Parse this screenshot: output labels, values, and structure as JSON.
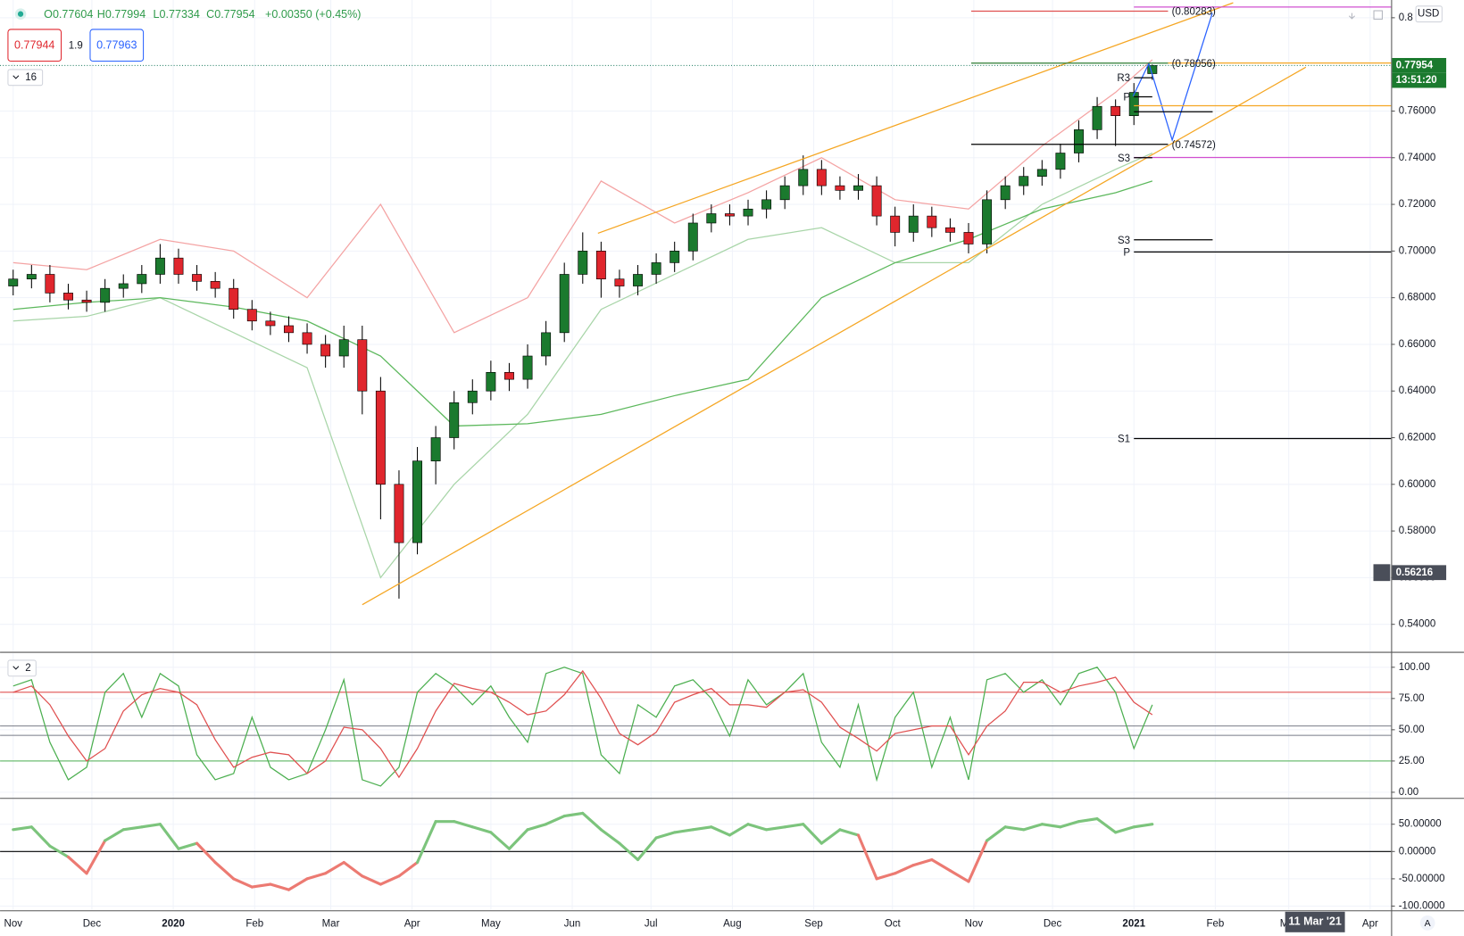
{
  "header": {
    "ohlc": [
      "O0.77604",
      "H0.77994",
      "L0.77334",
      "C0.77954",
      "+0.00350 (+0.45%)"
    ],
    "sell": "0.77944",
    "spread": "1.9",
    "buy": "0.77963",
    "price_pane_label": "16",
    "stoch_pane_label": "2",
    "currency": "USD",
    "countdown": "13:51:20",
    "crosshair_date": "11 Mar '21",
    "auto_button": "A"
  },
  "chart_data": [
    {
      "type": "candlestick",
      "xlim": [
        -5,
        525
      ],
      "xticks": [
        {
          "value": 0,
          "label": "Nov"
        },
        {
          "value": 30,
          "label": "Dec"
        },
        {
          "value": 61,
          "label": "2020"
        },
        {
          "value": 92,
          "label": "Feb"
        },
        {
          "value": 121,
          "label": "Mar"
        },
        {
          "value": 152,
          "label": "Apr"
        },
        {
          "value": 182,
          "label": "May"
        },
        {
          "value": 213,
          "label": "Jun"
        },
        {
          "value": 243,
          "label": "Jul"
        },
        {
          "value": 274,
          "label": "Aug"
        },
        {
          "value": 305,
          "label": "Sep"
        },
        {
          "value": 335,
          "label": "Oct"
        },
        {
          "value": 366,
          "label": "Nov"
        },
        {
          "value": 396,
          "label": "Dec"
        },
        {
          "value": 427,
          "label": "2021"
        },
        {
          "value": 458,
          "label": "Feb"
        },
        {
          "value": 486,
          "label": "Mar"
        },
        {
          "value": 517,
          "label": "Apr"
        }
      ],
      "ylim": [
        0.5284,
        0.8076
      ],
      "yticks": [
        {
          "value": 0.54,
          "label": "0.54000"
        },
        {
          "value": 0.56,
          "label": "0.56000"
        },
        {
          "value": 0.58,
          "label": "0.58000"
        },
        {
          "value": 0.6,
          "label": "0.60000"
        },
        {
          "value": 0.62,
          "label": "0.62000"
        },
        {
          "value": 0.64,
          "label": "0.64000"
        },
        {
          "value": 0.66,
          "label": "0.66000"
        },
        {
          "value": 0.68,
          "label": "0.68000"
        },
        {
          "value": 0.7,
          "label": "0.70000"
        },
        {
          "value": 0.72,
          "label": "0.72000"
        },
        {
          "value": 0.74,
          "label": "0.74000"
        },
        {
          "value": 0.76,
          "label": "0.76000"
        },
        {
          "value": 0.8,
          "label": "0.8"
        }
      ],
      "grid": true,
      "up_color": "#1b7a2e",
      "down_color": "#e0262d",
      "x": [
        0,
        7,
        14,
        21,
        28,
        35,
        42,
        49,
        56,
        63,
        70,
        77,
        84,
        91,
        98,
        105,
        112,
        119,
        126,
        133,
        140,
        147,
        154,
        161,
        168,
        175,
        182,
        189,
        196,
        203,
        210,
        217,
        224,
        231,
        238,
        245,
        252,
        259,
        266,
        273,
        280,
        287,
        294,
        301,
        308,
        315,
        322,
        329,
        336,
        343,
        350,
        357,
        364,
        371,
        378,
        385,
        392,
        399,
        406,
        413,
        420,
        427,
        434
      ],
      "open": [
        0.685,
        0.688,
        0.69,
        0.682,
        0.679,
        0.678,
        0.684,
        0.686,
        0.69,
        0.697,
        0.69,
        0.687,
        0.684,
        0.675,
        0.67,
        0.668,
        0.665,
        0.66,
        0.655,
        0.662,
        0.64,
        0.6,
        0.575,
        0.61,
        0.62,
        0.635,
        0.64,
        0.648,
        0.645,
        0.655,
        0.665,
        0.69,
        0.7,
        0.688,
        0.685,
        0.69,
        0.695,
        0.7,
        0.712,
        0.716,
        0.715,
        0.718,
        0.722,
        0.728,
        0.735,
        0.728,
        0.726,
        0.728,
        0.715,
        0.708,
        0.715,
        0.71,
        0.708,
        0.703,
        0.722,
        0.728,
        0.732,
        0.735,
        0.742,
        0.752,
        0.762,
        0.758,
        0.77604
      ],
      "high": [
        0.692,
        0.694,
        0.694,
        0.686,
        0.683,
        0.688,
        0.69,
        0.694,
        0.703,
        0.701,
        0.694,
        0.691,
        0.688,
        0.679,
        0.674,
        0.672,
        0.669,
        0.664,
        0.668,
        0.668,
        0.646,
        0.606,
        0.616,
        0.625,
        0.64,
        0.645,
        0.653,
        0.652,
        0.66,
        0.67,
        0.695,
        0.708,
        0.704,
        0.692,
        0.694,
        0.699,
        0.704,
        0.716,
        0.72,
        0.72,
        0.722,
        0.726,
        0.732,
        0.741,
        0.739,
        0.732,
        0.733,
        0.732,
        0.719,
        0.72,
        0.719,
        0.714,
        0.712,
        0.726,
        0.732,
        0.736,
        0.739,
        0.746,
        0.756,
        0.766,
        0.765,
        0.772,
        0.77994
      ],
      "low": [
        0.681,
        0.684,
        0.678,
        0.675,
        0.674,
        0.674,
        0.68,
        0.682,
        0.686,
        0.686,
        0.683,
        0.68,
        0.671,
        0.666,
        0.664,
        0.661,
        0.656,
        0.65,
        0.65,
        0.63,
        0.585,
        0.551,
        0.57,
        0.6,
        0.615,
        0.63,
        0.636,
        0.64,
        0.641,
        0.651,
        0.661,
        0.686,
        0.68,
        0.68,
        0.681,
        0.686,
        0.691,
        0.696,
        0.708,
        0.711,
        0.711,
        0.714,
        0.718,
        0.724,
        0.724,
        0.722,
        0.722,
        0.711,
        0.702,
        0.704,
        0.706,
        0.704,
        0.699,
        0.699,
        0.718,
        0.724,
        0.728,
        0.731,
        0.738,
        0.748,
        0.745,
        0.754,
        0.77334
      ],
      "close": [
        0.688,
        0.69,
        0.682,
        0.679,
        0.678,
        0.684,
        0.686,
        0.69,
        0.697,
        0.69,
        0.687,
        0.684,
        0.675,
        0.67,
        0.668,
        0.665,
        0.66,
        0.655,
        0.662,
        0.64,
        0.6,
        0.575,
        0.61,
        0.62,
        0.635,
        0.64,
        0.648,
        0.645,
        0.655,
        0.665,
        0.69,
        0.7,
        0.688,
        0.685,
        0.69,
        0.695,
        0.7,
        0.712,
        0.716,
        0.715,
        0.718,
        0.722,
        0.728,
        0.735,
        0.728,
        0.726,
        0.728,
        0.715,
        0.708,
        0.715,
        0.71,
        0.708,
        0.703,
        0.722,
        0.728,
        0.732,
        0.735,
        0.742,
        0.752,
        0.762,
        0.758,
        0.768,
        0.77954
      ],
      "overlays": [
        {
          "color": "#f4a3a3",
          "x": [
            0,
            28,
            56,
            84,
            112,
            140,
            168,
            196,
            224,
            252,
            280,
            308,
            336,
            364,
            392,
            420,
            434
          ],
          "values": [
            0.695,
            0.692,
            0.705,
            0.7,
            0.68,
            0.72,
            0.665,
            0.68,
            0.73,
            0.712,
            0.725,
            0.74,
            0.722,
            0.718,
            0.745,
            0.768,
            0.782
          ]
        },
        {
          "color": "#a8d5a8",
          "x": [
            0,
            28,
            56,
            84,
            112,
            140,
            168,
            196,
            224,
            252,
            280,
            308,
            336,
            364,
            392,
            420,
            434
          ],
          "values": [
            0.67,
            0.672,
            0.68,
            0.665,
            0.65,
            0.56,
            0.6,
            0.63,
            0.675,
            0.69,
            0.705,
            0.71,
            0.695,
            0.695,
            0.72,
            0.735,
            0.742
          ]
        },
        {
          "color": "#5cb85c",
          "x": [
            0,
            28,
            56,
            84,
            112,
            140,
            168,
            196,
            224,
            252,
            280,
            308,
            336,
            364,
            392,
            420,
            434
          ],
          "values": [
            0.675,
            0.678,
            0.68,
            0.676,
            0.67,
            0.655,
            0.625,
            0.626,
            0.63,
            0.638,
            0.645,
            0.68,
            0.695,
            0.705,
            0.718,
            0.725,
            0.73
          ]
        }
      ],
      "trendlines": [
        {
          "color": "#f5a623",
          "x": [
            133,
            492.5
          ],
          "values": [
            0.5484,
            0.7788
          ]
        },
        {
          "color": "#f5a623",
          "x": [
            222.8,
            464.8
          ],
          "values": [
            0.7076,
            0.8064
          ]
        },
        {
          "color": "#2962ff",
          "x": [
            426.7,
            432.7,
            441.6,
            456.9
          ],
          "values": [
            0.7664,
            0.7804,
            0.7476,
            0.802
          ]
        }
      ],
      "levels": [
        {
          "value": 0.80283,
          "x": [
            365,
            440
          ],
          "color": "#e05050",
          "label": "(0.80283)",
          "label_side": "right"
        },
        {
          "value": 0.78056,
          "x": [
            365,
            440
          ],
          "color": "#2e7d32",
          "label": "(0.78056)",
          "label_side": "right"
        },
        {
          "value": 0.74572,
          "x": [
            365,
            440
          ],
          "color": "#000000",
          "label": "(0.74572)",
          "label_side": "right"
        },
        {
          "value": 0.8046,
          "x": [
            427,
            525
          ],
          "color": "#d050d0"
        },
        {
          "value": 0.7806,
          "x": [
            440,
            525
          ],
          "color": "#f5a623"
        },
        {
          "value": 0.7623,
          "x": [
            427,
            525
          ],
          "color": "#f5a623"
        },
        {
          "value": 0.7401,
          "x": [
            427,
            525
          ],
          "color": "#d050d0"
        },
        {
          "value": 0.7743,
          "x": [
            427,
            434
          ],
          "color": "#000000",
          "label": "R3",
          "label_side": "left"
        },
        {
          "value": 0.7661,
          "x": [
            427,
            434
          ],
          "color": "#000000",
          "label": "P",
          "label_side": "left"
        },
        {
          "value": 0.7597,
          "x": [
            427,
            457
          ],
          "color": "#000000"
        },
        {
          "value": 0.74,
          "x": [
            427,
            434
          ],
          "color": "#000000",
          "label": "S3",
          "label_side": "left"
        },
        {
          "value": 0.7048,
          "x": [
            427,
            457
          ],
          "color": "#000000",
          "label": "S3",
          "label_side": "left"
        },
        {
          "value": 0.6996,
          "x": [
            427,
            525
          ],
          "color": "#000000",
          "label": "P",
          "label_side": "left"
        },
        {
          "value": 0.6196,
          "x": [
            427,
            525
          ],
          "color": "#000000",
          "label": "S1",
          "label_side": "left"
        }
      ],
      "last_price": {
        "value": 0.77954,
        "label": "0.77954"
      },
      "crosshair": {
        "x": 496,
        "value": 0.56216,
        "label": "0.56216"
      }
    },
    {
      "type": "line",
      "ylim": [
        -4.5,
        111.2
      ],
      "yticks": [
        {
          "value": 0,
          "label": "0.00"
        },
        {
          "value": 25,
          "label": "25.00"
        },
        {
          "value": 50,
          "label": "50.00"
        },
        {
          "value": 75,
          "label": "75.00"
        },
        {
          "value": 100,
          "label": "100.00"
        }
      ],
      "levels": [
        {
          "value": 80,
          "color": "#e05050"
        },
        {
          "value": 53,
          "color": "#787b86"
        },
        {
          "value": 45.5,
          "color": "#787b86"
        },
        {
          "value": 25,
          "color": "#4caf50"
        }
      ],
      "x": [
        0,
        7,
        14,
        21,
        28,
        35,
        42,
        49,
        56,
        63,
        70,
        77,
        84,
        91,
        98,
        105,
        112,
        119,
        126,
        133,
        140,
        147,
        154,
        161,
        168,
        175,
        182,
        189,
        196,
        203,
        210,
        217,
        224,
        231,
        238,
        245,
        252,
        259,
        266,
        273,
        280,
        287,
        294,
        301,
        308,
        315,
        322,
        329,
        336,
        343,
        350,
        357,
        364,
        371,
        378,
        385,
        392,
        399,
        406,
        413,
        420,
        427,
        434
      ],
      "series": [
        {
          "color": "#4caf50",
          "values": [
            85,
            90,
            40,
            10,
            20,
            80,
            95,
            60,
            95,
            85,
            30,
            10,
            15,
            60,
            20,
            10,
            15,
            50,
            90,
            10,
            5,
            20,
            80,
            95,
            85,
            70,
            85,
            60,
            40,
            95,
            100,
            95,
            30,
            15,
            70,
            60,
            85,
            90,
            75,
            45,
            90,
            70,
            80,
            95,
            40,
            20,
            70,
            10,
            60,
            80,
            20,
            60,
            10,
            90,
            95,
            80,
            90,
            70,
            95,
            100,
            80,
            35,
            70
          ]
        },
        {
          "color": "#e05050",
          "values": [
            80,
            85,
            70,
            45,
            25,
            35,
            65,
            78,
            83,
            80,
            70,
            42,
            20,
            28,
            32,
            30,
            15,
            25,
            52,
            50,
            35,
            12,
            35,
            65,
            87,
            83,
            80,
            72,
            62,
            65,
            78,
            97,
            75,
            47,
            38,
            48,
            72,
            78,
            83,
            70,
            70,
            68,
            80,
            82,
            72,
            52,
            43,
            33,
            47,
            50,
            53,
            53,
            30,
            53,
            65,
            88,
            88,
            80,
            85,
            88,
            92,
            72,
            62
          ]
        }
      ]
    },
    {
      "type": "line",
      "ylim": [
        -106.9,
        96.5
      ],
      "yticks": [
        {
          "value": -100,
          "label": "-100.0000"
        },
        {
          "value": -50,
          "label": "-50.00000"
        },
        {
          "value": 0,
          "label": "0.00000"
        },
        {
          "value": 50,
          "label": "50.00000"
        }
      ],
      "levels": [
        {
          "value": 0,
          "color": "#000000"
        }
      ],
      "x": [
        0,
        7,
        14,
        21,
        28,
        35,
        42,
        49,
        56,
        63,
        70,
        77,
        84,
        91,
        98,
        105,
        112,
        119,
        126,
        133,
        140,
        147,
        154,
        161,
        168,
        175,
        182,
        189,
        196,
        203,
        210,
        217,
        224,
        231,
        238,
        245,
        252,
        259,
        266,
        273,
        280,
        287,
        294,
        301,
        308,
        315,
        322,
        329,
        336,
        343,
        350,
        357,
        364,
        371,
        378,
        385,
        392,
        399,
        406,
        413,
        420,
        427,
        434
      ],
      "color_positive": "#7cc47c",
      "color_negative": "#ec7a72",
      "series": [
        {
          "values": [
            40,
            45,
            10,
            -10,
            -40,
            20,
            40,
            45,
            50,
            5,
            15,
            -20,
            -50,
            -65,
            -60,
            -70,
            -50,
            -40,
            -20,
            -45,
            -60,
            -45,
            -20,
            55,
            55,
            45,
            35,
            5,
            40,
            50,
            65,
            70,
            40,
            15,
            -15,
            25,
            35,
            40,
            45,
            30,
            50,
            40,
            45,
            50,
            15,
            40,
            30,
            -50,
            -40,
            -25,
            -15,
            -35,
            -55,
            20,
            45,
            40,
            50,
            45,
            55,
            60,
            35,
            45,
            50
          ]
        }
      ]
    }
  ]
}
